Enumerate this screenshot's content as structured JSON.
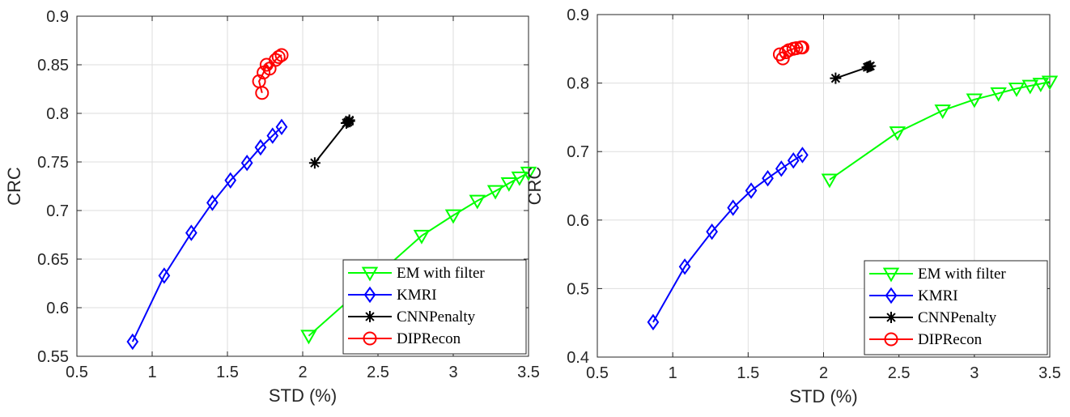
{
  "chart_data": [
    {
      "type": "line",
      "xlabel": "STD (%)",
      "ylabel": "CRC",
      "xlim": [
        0.5,
        3.5
      ],
      "ylim": [
        0.55,
        0.9
      ],
      "xticks": [
        "0.5",
        "1",
        "1.5",
        "2",
        "2.5",
        "3",
        "3.5"
      ],
      "yticks": [
        "0.55",
        "0.6",
        "0.65",
        "0.7",
        "0.75",
        "0.8",
        "0.85",
        "0.9"
      ],
      "grid": true,
      "legend_position": "bottom-right",
      "series": [
        {
          "name": "EM with filter",
          "color": "#00ff00",
          "marker": "triangle-down",
          "x": [
            2.04,
            2.79,
            3.0,
            3.16,
            3.28,
            3.37,
            3.44,
            3.5
          ],
          "y": [
            0.571,
            0.674,
            0.695,
            0.71,
            0.72,
            0.728,
            0.734,
            0.739
          ]
        },
        {
          "name": "KMRI",
          "color": "#0000ff",
          "marker": "diamond",
          "x": [
            0.87,
            1.08,
            1.26,
            1.4,
            1.52,
            1.63,
            1.72,
            1.8,
            1.86
          ],
          "y": [
            0.565,
            0.633,
            0.677,
            0.708,
            0.731,
            0.749,
            0.765,
            0.777,
            0.786
          ]
        },
        {
          "name": "CNNPenalty",
          "color": "#000000",
          "marker": "star",
          "x": [
            2.08,
            2.29,
            2.3,
            2.31,
            2.31
          ],
          "y": [
            0.749,
            0.79,
            0.791,
            0.792,
            0.793
          ]
        },
        {
          "name": "DIPRecon",
          "color": "#ff0000",
          "marker": "circle",
          "x": [
            1.73,
            1.71,
            1.74,
            1.76,
            1.78,
            1.82,
            1.84,
            1.86
          ],
          "y": [
            0.821,
            0.833,
            0.842,
            0.85,
            0.846,
            0.855,
            0.858,
            0.86
          ]
        }
      ]
    },
    {
      "type": "line",
      "xlabel": "STD (%)",
      "ylabel": "CRC",
      "xlim": [
        0.5,
        3.5
      ],
      "ylim": [
        0.4,
        0.9
      ],
      "xticks": [
        "0.5",
        "1",
        "1.5",
        "2",
        "2.5",
        "3",
        "3.5"
      ],
      "yticks": [
        "0.4",
        "0.5",
        "0.6",
        "0.7",
        "0.8",
        "0.9"
      ],
      "grid": true,
      "legend_position": "bottom-right",
      "series": [
        {
          "name": "EM with filter",
          "color": "#00ff00",
          "marker": "triangle-down",
          "x": [
            2.04,
            2.49,
            2.79,
            3.0,
            3.16,
            3.28,
            3.37,
            3.44,
            3.5
          ],
          "y": [
            0.659,
            0.728,
            0.76,
            0.776,
            0.785,
            0.792,
            0.796,
            0.799,
            0.802
          ]
        },
        {
          "name": "KMRI",
          "color": "#0000ff",
          "marker": "diamond",
          "x": [
            0.87,
            1.08,
            1.26,
            1.4,
            1.52,
            1.63,
            1.72,
            1.8,
            1.86
          ],
          "y": [
            0.451,
            0.532,
            0.583,
            0.618,
            0.643,
            0.661,
            0.675,
            0.687,
            0.695
          ]
        },
        {
          "name": "CNNPenalty",
          "color": "#000000",
          "marker": "star",
          "x": [
            2.08,
            2.29,
            2.3,
            2.31
          ],
          "y": [
            0.807,
            0.823,
            0.824,
            0.825
          ]
        },
        {
          "name": "DIPRecon",
          "color": "#ff0000",
          "marker": "circle",
          "x": [
            1.71,
            1.73,
            1.75,
            1.77,
            1.8,
            1.82,
            1.85,
            1.86
          ],
          "y": [
            0.842,
            0.836,
            0.845,
            0.848,
            0.85,
            0.851,
            0.852,
            0.852
          ]
        }
      ]
    }
  ]
}
